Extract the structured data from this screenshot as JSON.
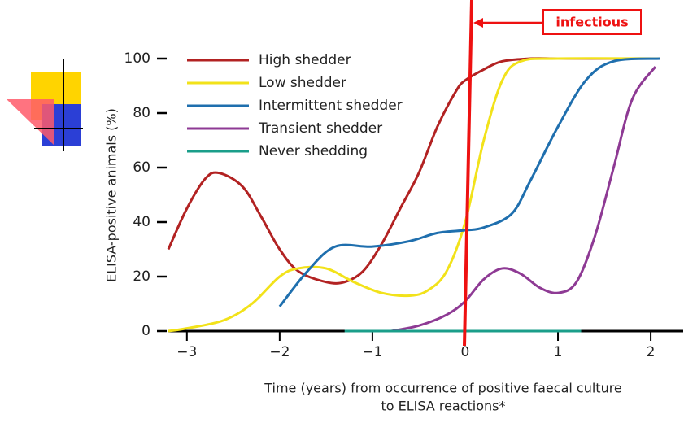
{
  "chart_data": {
    "type": "line",
    "ylabel": "ELISA-positive animals (%)",
    "xlabel": [
      "Time (years) from occurrence of positive faecal culture",
      "to ELISA reactions*"
    ],
    "annotation": "infectious",
    "xlim": [
      -3.2,
      2.35
    ],
    "ylim": [
      0,
      100
    ],
    "xticks": [
      {
        "value": -3,
        "label": "−3"
      },
      {
        "value": -2,
        "label": "−2"
      },
      {
        "value": -1,
        "label": "−1"
      },
      0,
      1,
      2
    ],
    "yticks": [
      0,
      20,
      40,
      60,
      80,
      100
    ],
    "legend": "upper left",
    "series": [
      {
        "name": "High shedder",
        "color": "#b22222",
        "x": [
          -3.2,
          -3,
          -2.8,
          -2.65,
          -2.4,
          -2.2,
          -2,
          -1.8,
          -1.5,
          -1.3,
          -1.1,
          -0.9,
          -0.7,
          -0.5,
          -0.3,
          -0.1,
          0,
          0.2,
          0.4,
          0.7,
          1,
          1.5,
          2.1
        ],
        "values": [
          30,
          45,
          56,
          58,
          53,
          42,
          30,
          22,
          18,
          18,
          22,
          32,
          45,
          58,
          75,
          88,
          92,
          96,
          99,
          100,
          100,
          100,
          100
        ]
      },
      {
        "name": "Low shedder",
        "color": "#f2e21a",
        "x": [
          -3.2,
          -3,
          -2.6,
          -2.3,
          -2,
          -1.8,
          -1.5,
          -1.2,
          -0.9,
          -0.6,
          -0.4,
          -0.2,
          0,
          0.2,
          0.4,
          0.6,
          1,
          2.1
        ],
        "values": [
          0,
          1,
          4,
          10,
          20,
          23,
          23,
          18,
          14,
          13,
          15,
          22,
          40,
          70,
          92,
          99,
          100,
          100
        ]
      },
      {
        "name": "Intermittent shedder",
        "color": "#1f6fae",
        "x": [
          -2,
          -1.7,
          -1.4,
          -1,
          -0.6,
          -0.3,
          0,
          0.2,
          0.5,
          0.7,
          1,
          1.3,
          1.6,
          2.1
        ],
        "values": [
          9,
          22,
          31,
          31,
          33,
          36,
          37,
          38,
          43,
          55,
          75,
          92,
          99,
          100
        ]
      },
      {
        "name": "Transient shedder",
        "color": "#8e3a94",
        "x": [
          -0.8,
          -0.5,
          -0.2,
          0,
          0.2,
          0.4,
          0.6,
          0.8,
          1,
          1.2,
          1.4,
          1.6,
          1.8,
          2.05
        ],
        "values": [
          0,
          2,
          6,
          11,
          19,
          23,
          21,
          16,
          14,
          18,
          35,
          60,
          85,
          97
        ]
      },
      {
        "name": "Never shedding",
        "color": "#1a9e8a",
        "x": [
          -1.3,
          1.25
        ],
        "values": [
          0,
          0
        ]
      }
    ]
  }
}
